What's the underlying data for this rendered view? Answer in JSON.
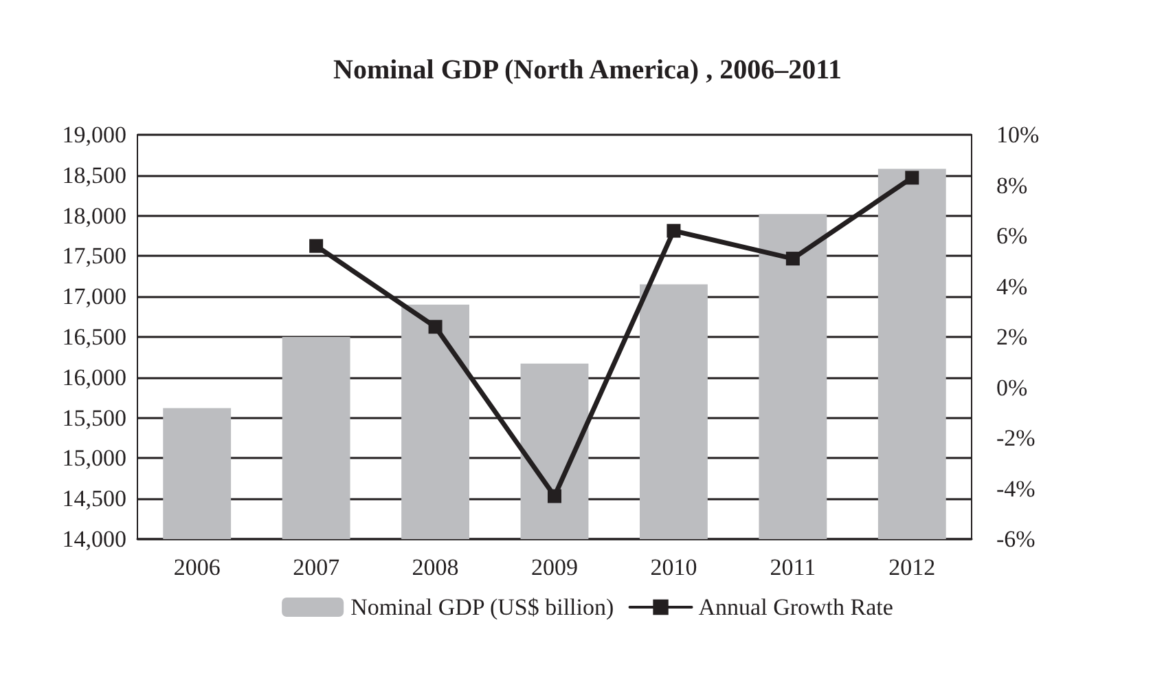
{
  "chart_data": {
    "type": "bar",
    "title": "Nominal GDP (North America) , 2006–2011",
    "categories": [
      "2006",
      "2007",
      "2008",
      "2009",
      "2010",
      "2011",
      "2012"
    ],
    "series": [
      {
        "name": "Nominal GDP (US$ billion)",
        "color": "#bcbdc0",
        "values": [
          15620,
          16500,
          16900,
          16170,
          17150,
          18020,
          18580
        ]
      },
      {
        "name": "Annual Growth Rate",
        "type": "line",
        "axis": "y2",
        "color": "#231f20",
        "marker": "square",
        "values": [
          null,
          5.6,
          2.4,
          -4.3,
          6.2,
          5.1,
          8.3
        ]
      }
    ],
    "ylim": [
      14000,
      19000
    ],
    "yticks": [
      {
        "value": 14000,
        "label": "14,000"
      },
      {
        "value": 14500,
        "label": "14,500"
      },
      {
        "value": 15000,
        "label": "15,000"
      },
      {
        "value": 15500,
        "label": "15,500"
      },
      {
        "value": 16000,
        "label": "16,000"
      },
      {
        "value": 16500,
        "label": "16,500"
      },
      {
        "value": 17000,
        "label": "17,000"
      },
      {
        "value": 17500,
        "label": "17,500"
      },
      {
        "value": 18000,
        "label": "18,000"
      },
      {
        "value": 18500,
        "label": "18,500"
      },
      {
        "value": 19000,
        "label": "19,000"
      }
    ],
    "y2lim": [
      -6,
      10
    ],
    "y2ticks": [
      {
        "value": -6,
        "label": "-6%"
      },
      {
        "value": -4,
        "label": "-4%"
      },
      {
        "value": -2,
        "label": "-2%"
      },
      {
        "value": 0,
        "label": "0%"
      },
      {
        "value": 2,
        "label": "2%"
      },
      {
        "value": 4,
        "label": "4%"
      },
      {
        "value": 6,
        "label": "6%"
      },
      {
        "value": 8,
        "label": "8%"
      },
      {
        "value": 10,
        "label": "10%"
      }
    ],
    "grid": "y",
    "legend": "bottom",
    "line_style": "solid"
  }
}
